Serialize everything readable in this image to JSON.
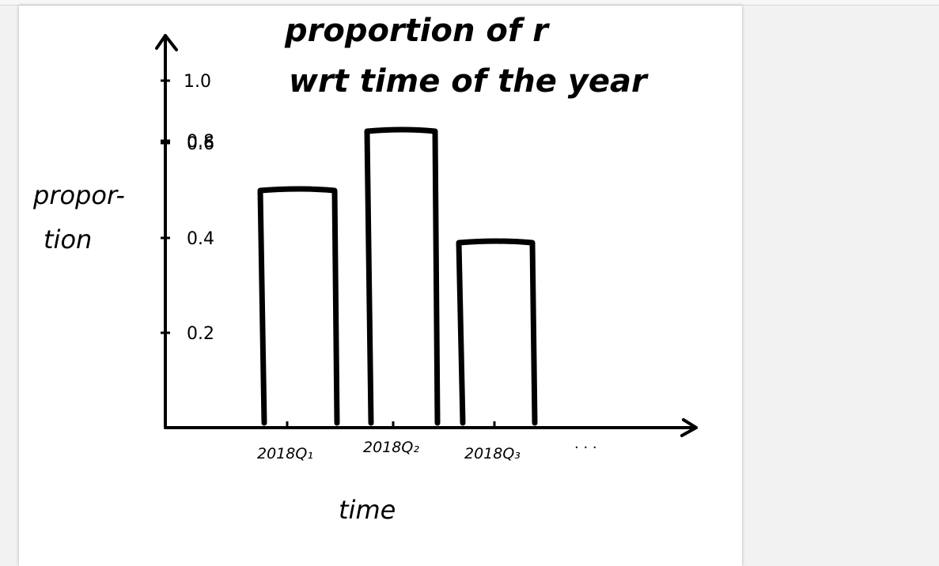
{
  "chart_data": {
    "type": "bar",
    "title_line1": "proportion of ",
    "title_symbol": "r",
    "title_line2": "wrt  time of the year",
    "xlabel": "time",
    "ylabel_line1": "propor-",
    "ylabel_line2": "tion",
    "categories": [
      "2018Q1",
      "2018Q2",
      "2018Q3"
    ],
    "category_labels": [
      "2018Q₁",
      "2018Q₂",
      "2018Q₃"
    ],
    "values": [
      0.5,
      0.62,
      0.39
    ],
    "yticks": [
      0.2,
      0.4,
      0.6,
      0.8,
      1.0
    ],
    "ytick_labels": [
      "0.2",
      "0.4",
      "0.6",
      "0.8",
      "1.0"
    ],
    "ylim": [
      0,
      1.08
    ],
    "x_continuation": "· · ·",
    "grid": false,
    "stroke_color": "#000000"
  }
}
